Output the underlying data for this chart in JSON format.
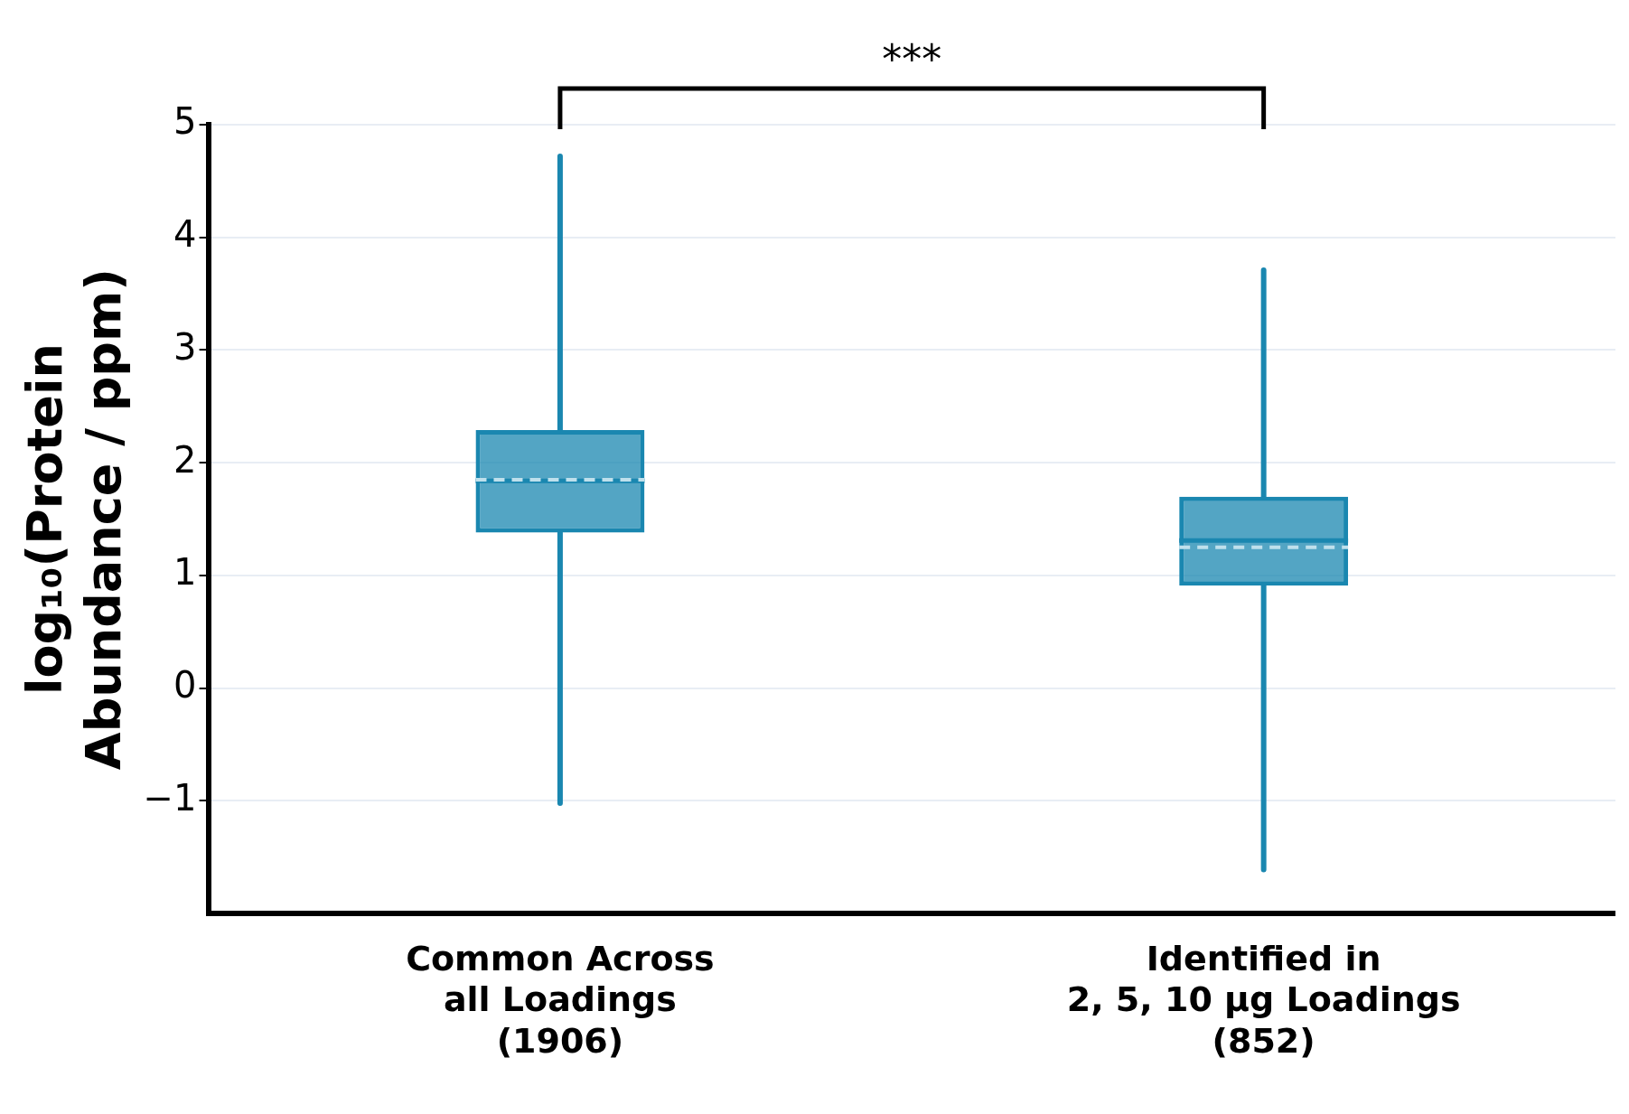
{
  "chart_data": {
    "type": "box",
    "ylabel": "log₁₀(Protein\nAbundance / ppm)",
    "categories": [
      "Common Across\nall Loadings\n(1906)",
      "Identified in\n2, 5, 10 µg Loadings\n(852)"
    ],
    "boxes": [
      {
        "low": -1.02,
        "q1": 1.38,
        "median": 1.84,
        "q3": 2.29,
        "high": 4.72,
        "mean": 1.85
      },
      {
        "low": -1.61,
        "q1": 0.91,
        "median": 1.31,
        "q3": 1.7,
        "high": 3.71,
        "mean": 1.25
      }
    ],
    "color": "#1a87b0",
    "ylim": [
      -2,
      5
    ],
    "yticks": [
      -1,
      0,
      1,
      2,
      3,
      4,
      5
    ],
    "grid": "y",
    "legend": false,
    "annotations": [
      "***"
    ]
  }
}
